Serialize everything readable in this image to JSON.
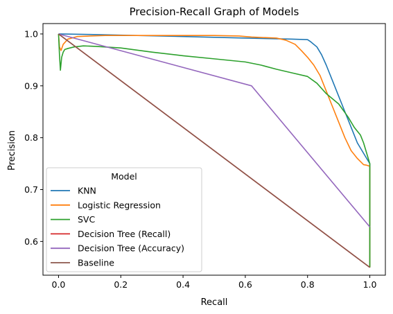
{
  "chart_data": {
    "type": "line",
    "title": "Precision-Recall Graph of Models",
    "xlabel": "Recall",
    "ylabel": "Precision",
    "xlim": [
      -0.05,
      1.05
    ],
    "ylim": [
      0.535,
      1.02
    ],
    "xticks": [
      0.0,
      0.2,
      0.4,
      0.6,
      0.8,
      1.0
    ],
    "xtick_labels": [
      "0.0",
      "0.2",
      "0.4",
      "0.6",
      "0.8",
      "1.0"
    ],
    "yticks": [
      0.6,
      0.7,
      0.8,
      0.9,
      1.0
    ],
    "ytick_labels": [
      "0.6",
      "0.7",
      "0.8",
      "0.9",
      "1.0"
    ],
    "grid": false,
    "legend": {
      "title": "Model",
      "placement": "lower-left"
    },
    "series": [
      {
        "name": "KNN",
        "color": "#1f77b4",
        "x": [
          0.0,
          0.1,
          0.4,
          0.6,
          0.75,
          0.8,
          0.81,
          0.83,
          0.845,
          0.86,
          0.88,
          0.9,
          0.92,
          0.94,
          0.96,
          0.98,
          0.99,
          1.0,
          1.0
        ],
        "y": [
          1.0,
          0.999,
          0.995,
          0.992,
          0.99,
          0.989,
          0.985,
          0.975,
          0.96,
          0.94,
          0.91,
          0.88,
          0.85,
          0.82,
          0.79,
          0.77,
          0.76,
          0.75,
          0.55
        ]
      },
      {
        "name": "Logistic Regression",
        "color": "#ff7f0e",
        "x": [
          0.0,
          0.003,
          0.008,
          0.015,
          0.03,
          0.06,
          0.1,
          0.15,
          0.3,
          0.5,
          0.58,
          0.62,
          0.7,
          0.73,
          0.76,
          0.78,
          0.8,
          0.82,
          0.84,
          0.86,
          0.88,
          0.9,
          0.92,
          0.94,
          0.96,
          0.98,
          0.99,
          1.0,
          1.0
        ],
        "y": [
          1.0,
          0.975,
          0.968,
          0.98,
          0.99,
          0.995,
          0.996,
          0.997,
          0.997,
          0.997,
          0.996,
          0.994,
          0.992,
          0.988,
          0.98,
          0.968,
          0.955,
          0.94,
          0.92,
          0.89,
          0.86,
          0.83,
          0.8,
          0.775,
          0.76,
          0.748,
          0.747,
          0.745,
          0.55
        ]
      },
      {
        "name": "SVC",
        "color": "#2ca02c",
        "x": [
          0.0,
          0.003,
          0.006,
          0.01,
          0.015,
          0.02,
          0.03,
          0.05,
          0.08,
          0.12,
          0.2,
          0.3,
          0.4,
          0.5,
          0.6,
          0.65,
          0.7,
          0.75,
          0.8,
          0.83,
          0.86,
          0.9,
          0.93,
          0.95,
          0.97,
          0.98,
          0.99,
          1.0,
          1.0
        ],
        "y": [
          1.0,
          0.96,
          0.93,
          0.955,
          0.965,
          0.97,
          0.972,
          0.975,
          0.977,
          0.976,
          0.973,
          0.965,
          0.958,
          0.952,
          0.946,
          0.94,
          0.932,
          0.925,
          0.918,
          0.905,
          0.885,
          0.865,
          0.84,
          0.82,
          0.805,
          0.79,
          0.77,
          0.75,
          0.55
        ]
      },
      {
        "name": "Decision Tree (Recall)",
        "color": "#d62728",
        "x": [
          0.0,
          1.0
        ],
        "y": [
          1.0,
          0.55
        ]
      },
      {
        "name": "Decision Tree (Accuracy)",
        "color": "#9467bd",
        "x": [
          0.0,
          0.62,
          1.0
        ],
        "y": [
          1.0,
          0.9,
          0.628
        ]
      },
      {
        "name": "Baseline",
        "color": "#8c564b",
        "x": [
          0.0,
          1.0
        ],
        "y": [
          1.0,
          0.55
        ]
      }
    ]
  }
}
